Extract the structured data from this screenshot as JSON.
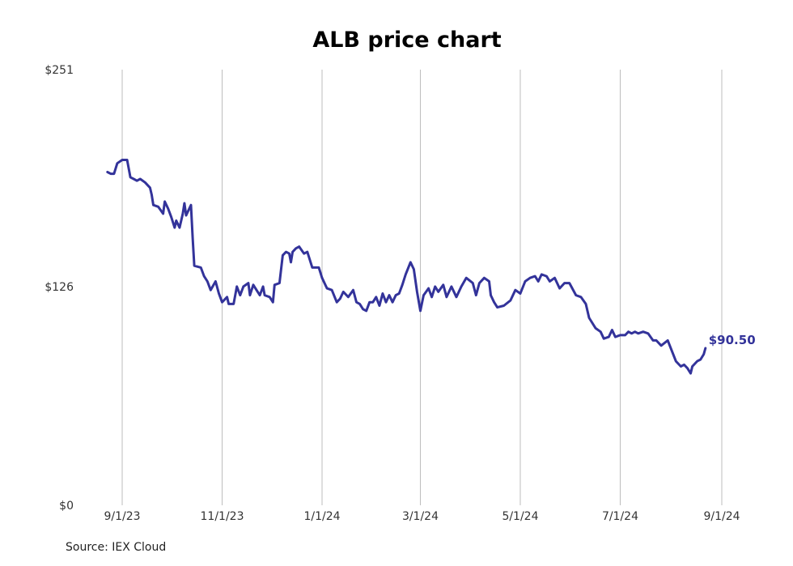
{
  "chart_data": {
    "type": "line",
    "title": "ALB price chart",
    "source": "Source: IEX Cloud",
    "line_color": "#33339a",
    "grid_color": "#bdbdbd",
    "ylim": [
      0,
      251
    ],
    "y_ticks": [
      {
        "value": 0,
        "label": "$0"
      },
      {
        "value": 126,
        "label": "$126"
      },
      {
        "value": 251,
        "label": "$251"
      }
    ],
    "x_ticks": [
      {
        "date": "2023-09-01",
        "label": "9/1/23"
      },
      {
        "date": "2023-11-01",
        "label": "11/1/23"
      },
      {
        "date": "2024-01-01",
        "label": "1/1/24"
      },
      {
        "date": "2024-03-01",
        "label": "3/1/24"
      },
      {
        "date": "2024-05-01",
        "label": "5/1/24"
      },
      {
        "date": "2024-07-01",
        "label": "7/1/24"
      },
      {
        "date": "2024-09-01",
        "label": "9/1/24"
      }
    ],
    "grid": "vertical",
    "end_label": "$90.50",
    "series": [
      {
        "values": [
          [
            "2023-08-23",
            192
          ],
          [
            "2023-08-25",
            191
          ],
          [
            "2023-08-27",
            191
          ],
          [
            "2023-08-29",
            197
          ],
          [
            "2023-09-01",
            199
          ],
          [
            "2023-09-04",
            199
          ],
          [
            "2023-09-06",
            189
          ],
          [
            "2023-09-08",
            188
          ],
          [
            "2023-09-10",
            187
          ],
          [
            "2023-09-12",
            188
          ],
          [
            "2023-09-15",
            186
          ],
          [
            "2023-09-18",
            183
          ],
          [
            "2023-09-19",
            179
          ],
          [
            "2023-09-20",
            173
          ],
          [
            "2023-09-23",
            172
          ],
          [
            "2023-09-26",
            168
          ],
          [
            "2023-09-27",
            175
          ],
          [
            "2023-09-29",
            171
          ],
          [
            "2023-10-01",
            166
          ],
          [
            "2023-10-03",
            160
          ],
          [
            "2023-10-04",
            164
          ],
          [
            "2023-10-06",
            160
          ],
          [
            "2023-10-08",
            168
          ],
          [
            "2023-10-09",
            174
          ],
          [
            "2023-10-10",
            167
          ],
          [
            "2023-10-13",
            173
          ],
          [
            "2023-10-14",
            154
          ],
          [
            "2023-10-15",
            138
          ],
          [
            "2023-10-19",
            137
          ],
          [
            "2023-10-21",
            132
          ],
          [
            "2023-10-23",
            129
          ],
          [
            "2023-10-25",
            124
          ],
          [
            "2023-10-28",
            129
          ],
          [
            "2023-10-30",
            122
          ],
          [
            "2023-11-01",
            117
          ],
          [
            "2023-11-04",
            120
          ],
          [
            "2023-11-05",
            116
          ],
          [
            "2023-11-08",
            116
          ],
          [
            "2023-11-10",
            126
          ],
          [
            "2023-11-12",
            121
          ],
          [
            "2023-11-14",
            126
          ],
          [
            "2023-11-17",
            128
          ],
          [
            "2023-11-18",
            121
          ],
          [
            "2023-11-20",
            127
          ],
          [
            "2023-11-22",
            124
          ],
          [
            "2023-11-24",
            121
          ],
          [
            "2023-11-26",
            126
          ],
          [
            "2023-11-27",
            121
          ],
          [
            "2023-11-30",
            120
          ],
          [
            "2023-12-02",
            117
          ],
          [
            "2023-12-03",
            127
          ],
          [
            "2023-12-06",
            128
          ],
          [
            "2023-12-08",
            144
          ],
          [
            "2023-12-10",
            146
          ],
          [
            "2023-12-12",
            145
          ],
          [
            "2023-12-13",
            140
          ],
          [
            "2023-12-14",
            146
          ],
          [
            "2023-12-16",
            148
          ],
          [
            "2023-12-18",
            149
          ],
          [
            "2023-12-21",
            145
          ],
          [
            "2023-12-23",
            146
          ],
          [
            "2023-12-26",
            137
          ],
          [
            "2023-12-30",
            137
          ],
          [
            "2024-01-01",
            131
          ],
          [
            "2024-01-04",
            125
          ],
          [
            "2024-01-07",
            124
          ],
          [
            "2024-01-10",
            117
          ],
          [
            "2024-01-12",
            119
          ],
          [
            "2024-01-14",
            123
          ],
          [
            "2024-01-17",
            120
          ],
          [
            "2024-01-20",
            124
          ],
          [
            "2024-01-22",
            117
          ],
          [
            "2024-01-24",
            116
          ],
          [
            "2024-01-26",
            113
          ],
          [
            "2024-01-28",
            112
          ],
          [
            "2024-01-30",
            117
          ],
          [
            "2024-02-01",
            117
          ],
          [
            "2024-02-03",
            120
          ],
          [
            "2024-02-05",
            115
          ],
          [
            "2024-02-07",
            122
          ],
          [
            "2024-02-09",
            117
          ],
          [
            "2024-02-11",
            121
          ],
          [
            "2024-02-13",
            117
          ],
          [
            "2024-02-15",
            121
          ],
          [
            "2024-02-17",
            122
          ],
          [
            "2024-02-19",
            127
          ],
          [
            "2024-02-21",
            133
          ],
          [
            "2024-02-24",
            140
          ],
          [
            "2024-02-26",
            136
          ],
          [
            "2024-02-28",
            123
          ],
          [
            "2024-03-01",
            112
          ],
          [
            "2024-03-03",
            121
          ],
          [
            "2024-03-06",
            125
          ],
          [
            "2024-03-08",
            120
          ],
          [
            "2024-03-10",
            126
          ],
          [
            "2024-03-12",
            123
          ],
          [
            "2024-03-15",
            127
          ],
          [
            "2024-03-17",
            120
          ],
          [
            "2024-03-20",
            126
          ],
          [
            "2024-03-23",
            120
          ],
          [
            "2024-03-26",
            126
          ],
          [
            "2024-03-29",
            131
          ],
          [
            "2024-04-02",
            128
          ],
          [
            "2024-04-04",
            121
          ],
          [
            "2024-04-06",
            128
          ],
          [
            "2024-04-09",
            131
          ],
          [
            "2024-04-12",
            129
          ],
          [
            "2024-04-13",
            121
          ],
          [
            "2024-04-15",
            117
          ],
          [
            "2024-04-17",
            114
          ],
          [
            "2024-04-21",
            115
          ],
          [
            "2024-04-25",
            118
          ],
          [
            "2024-04-28",
            124
          ],
          [
            "2024-05-01",
            122
          ],
          [
            "2024-05-04",
            129
          ],
          [
            "2024-05-07",
            131
          ],
          [
            "2024-05-10",
            132
          ],
          [
            "2024-05-12",
            129
          ],
          [
            "2024-05-14",
            133
          ],
          [
            "2024-05-17",
            132
          ],
          [
            "2024-05-19",
            129
          ],
          [
            "2024-05-22",
            131
          ],
          [
            "2024-05-25",
            125
          ],
          [
            "2024-05-28",
            128
          ],
          [
            "2024-05-31",
            128
          ],
          [
            "2024-06-04",
            121
          ],
          [
            "2024-06-07",
            120
          ],
          [
            "2024-06-10",
            116
          ],
          [
            "2024-06-12",
            108
          ],
          [
            "2024-06-16",
            102
          ],
          [
            "2024-06-19",
            100
          ],
          [
            "2024-06-21",
            96
          ],
          [
            "2024-06-24",
            97
          ],
          [
            "2024-06-26",
            101
          ],
          [
            "2024-06-28",
            97
          ],
          [
            "2024-07-01",
            98
          ],
          [
            "2024-07-04",
            98
          ],
          [
            "2024-07-06",
            100
          ],
          [
            "2024-07-08",
            99
          ],
          [
            "2024-07-10",
            100
          ],
          [
            "2024-07-12",
            99
          ],
          [
            "2024-07-15",
            100
          ],
          [
            "2024-07-18",
            99
          ],
          [
            "2024-07-21",
            95
          ],
          [
            "2024-07-23",
            95
          ],
          [
            "2024-07-26",
            92
          ],
          [
            "2024-07-30",
            95
          ],
          [
            "2024-08-04",
            83
          ],
          [
            "2024-08-07",
            80
          ],
          [
            "2024-08-09",
            81
          ],
          [
            "2024-08-11",
            79
          ],
          [
            "2024-08-13",
            76
          ],
          [
            "2024-08-14",
            80
          ],
          [
            "2024-08-17",
            83
          ],
          [
            "2024-08-19",
            84
          ],
          [
            "2024-08-21",
            87
          ],
          [
            "2024-08-22",
            90.5
          ]
        ]
      }
    ]
  }
}
